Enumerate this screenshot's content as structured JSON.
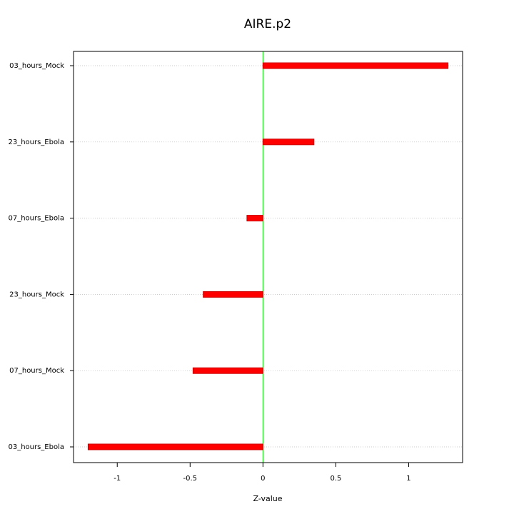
{
  "chart_data": {
    "type": "hbar",
    "title": "AIRE.p2",
    "x_label": "Z-value",
    "categories": [
      "03_hours_Ebola",
      "07_hours_Mock",
      "23_hours_Mock",
      "07_hours_Ebola",
      "23_hours_Ebola",
      "03_hours_Mock"
    ],
    "values": [
      -1.2,
      -0.48,
      -0.41,
      -0.11,
      0.35,
      1.27
    ],
    "color": "#ff0000",
    "xlim": [
      -1.3,
      1.37
    ],
    "xticks": [
      -1.0,
      -0.5,
      0.0,
      0.5,
      1.0
    ],
    "grid": true
  }
}
